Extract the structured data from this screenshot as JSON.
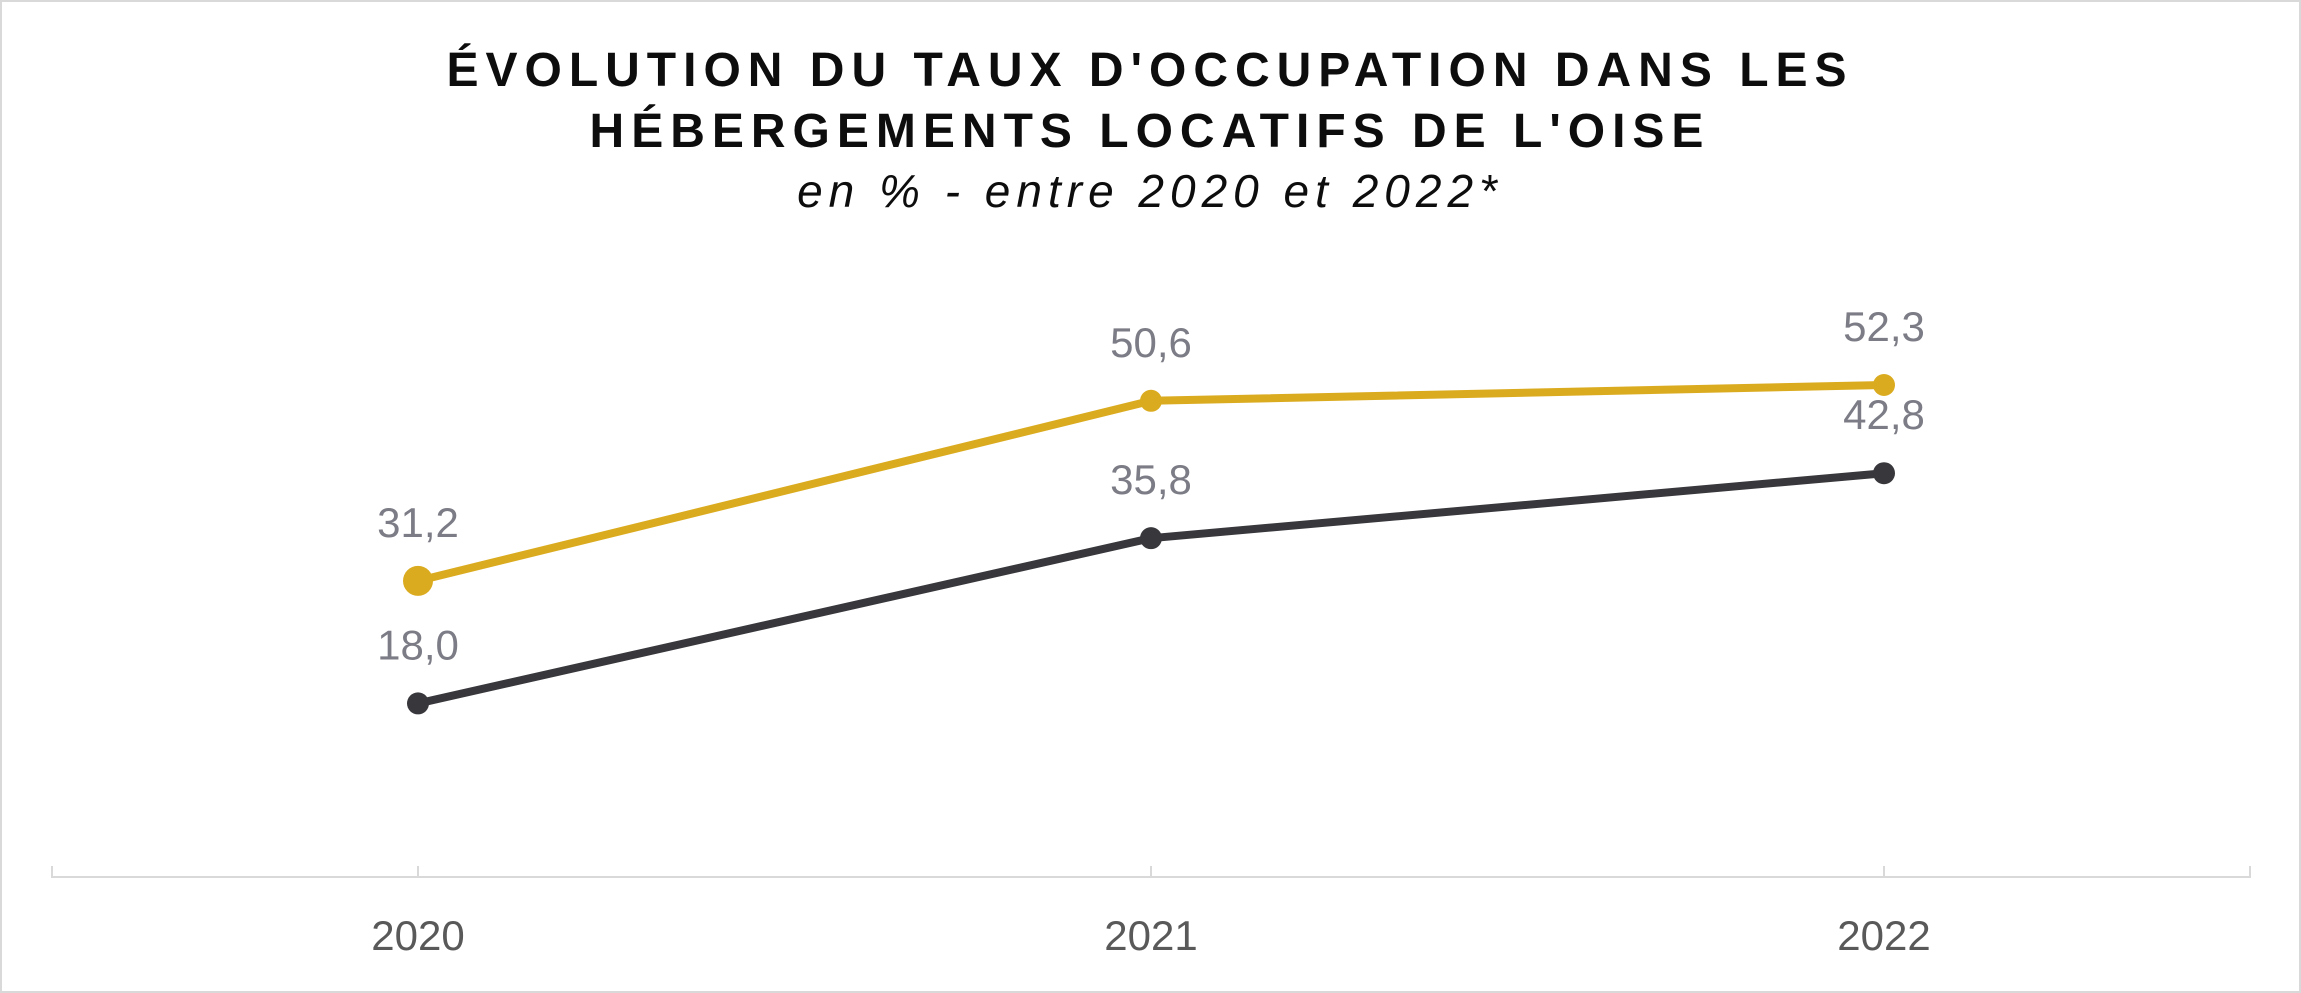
{
  "chart_data": {
    "type": "line",
    "title_line1": "ÉVOLUTION DU TAUX D'OCCUPATION DANS LES",
    "title_line2": "HÉBERGEMENTS LOCATIFS DE L'OISE",
    "subtitle": "en % - entre 2020 et 2022*",
    "xlabel": "",
    "ylabel": "",
    "categories": [
      "2020",
      "2021",
      "2022"
    ],
    "series": [
      {
        "values": [
          31.2,
          50.6,
          52.3
        ],
        "labels": [
          "31,2",
          "50,6",
          "52,3"
        ],
        "color": "#dbab1f"
      },
      {
        "values": [
          18.0,
          35.8,
          42.8
        ],
        "labels": [
          "18,0",
          "35,8",
          "42,8"
        ],
        "color": "#38373c"
      }
    ],
    "ylim": [
      -0.7,
      69.0
    ],
    "grid": false,
    "legend": "none"
  }
}
